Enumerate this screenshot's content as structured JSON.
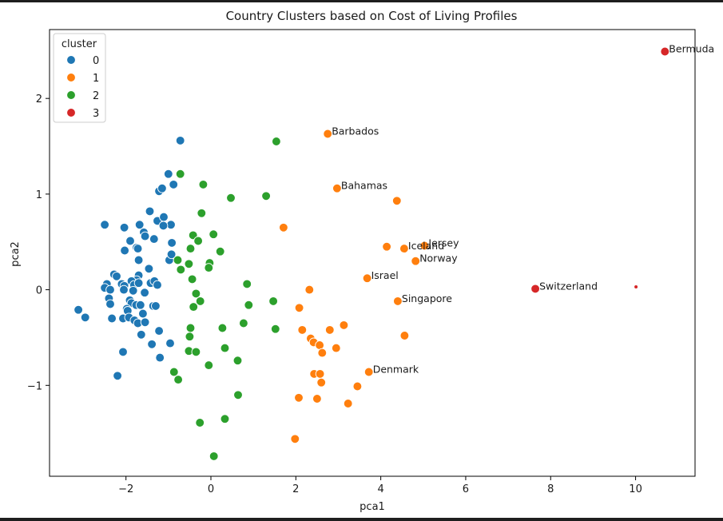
{
  "chart_data": {
    "type": "scatter",
    "title": "Country Clusters based on Cost of Living Profiles",
    "xlabel": "pca1",
    "ylabel": "pca2",
    "xlim": [
      -3.8,
      11.4
    ],
    "ylim": [
      -1.95,
      2.72
    ],
    "xticks": [
      {
        "v": -2,
        "label": "−2"
      },
      {
        "v": 0,
        "label": "0"
      },
      {
        "v": 2,
        "label": "2"
      },
      {
        "v": 4,
        "label": "4"
      },
      {
        "v": 6,
        "label": "6"
      },
      {
        "v": 8,
        "label": "8"
      },
      {
        "v": 10,
        "label": "10"
      }
    ],
    "yticks": [
      {
        "v": -1,
        "label": "−1"
      },
      {
        "v": 0,
        "label": "0"
      },
      {
        "v": 1,
        "label": "1"
      },
      {
        "v": 2,
        "label": "2"
      }
    ],
    "grid": false,
    "legend": {
      "title": "cluster",
      "position": "top-left",
      "entries": [
        {
          "label": "0",
          "color": "#1f77b4"
        },
        {
          "label": "1",
          "color": "#ff7f0e"
        },
        {
          "label": "2",
          "color": "#2ca02c"
        },
        {
          "label": "3",
          "color": "#d62728"
        }
      ]
    },
    "series": [
      {
        "name": "0",
        "color": "#1f77b4",
        "points": [
          [
            -0.72,
            1.56
          ],
          [
            -1.0,
            1.21
          ],
          [
            -0.88,
            1.1
          ],
          [
            -1.22,
            1.03
          ],
          [
            -1.15,
            1.06
          ],
          [
            -2.5,
            0.68
          ],
          [
            -2.04,
            0.65
          ],
          [
            -1.44,
            0.82
          ],
          [
            -1.26,
            0.72
          ],
          [
            -1.11,
            0.76
          ],
          [
            -0.94,
            0.68
          ],
          [
            -1.68,
            0.68
          ],
          [
            -1.12,
            0.67
          ],
          [
            -1.58,
            0.6
          ],
          [
            -1.55,
            0.56
          ],
          [
            -1.34,
            0.53
          ],
          [
            -1.9,
            0.51
          ],
          [
            -0.92,
            0.49
          ],
          [
            -1.75,
            0.44
          ],
          [
            -1.72,
            0.43
          ],
          [
            -2.03,
            0.41
          ],
          [
            -0.98,
            0.31
          ],
          [
            -0.93,
            0.37
          ],
          [
            -1.7,
            0.31
          ],
          [
            -1.46,
            0.22
          ],
          [
            -2.28,
            0.16
          ],
          [
            -2.22,
            0.14
          ],
          [
            -1.7,
            0.15
          ],
          [
            -1.75,
            0.1
          ],
          [
            -2.1,
            0.06
          ],
          [
            -1.87,
            0.09
          ],
          [
            -1.81,
            0.05
          ],
          [
            -1.42,
            0.07
          ],
          [
            -1.33,
            0.09
          ],
          [
            -1.26,
            0.05
          ],
          [
            -2.45,
            0.06
          ],
          [
            -2.5,
            0.02
          ],
          [
            -2.37,
            0.0
          ],
          [
            -2.04,
            0.04
          ],
          [
            -1.7,
            0.07
          ],
          [
            -2.05,
            0.0
          ],
          [
            -1.83,
            -0.01
          ],
          [
            -1.56,
            -0.03
          ],
          [
            -2.4,
            -0.09
          ],
          [
            -2.37,
            -0.15
          ],
          [
            -1.91,
            -0.11
          ],
          [
            -1.87,
            -0.14
          ],
          [
            -1.76,
            -0.16
          ],
          [
            -1.66,
            -0.16
          ],
          [
            -1.36,
            -0.17
          ],
          [
            -1.3,
            -0.17
          ],
          [
            -1.98,
            -0.2
          ],
          [
            -1.96,
            -0.22
          ],
          [
            -1.6,
            -0.25
          ],
          [
            -3.12,
            -0.21
          ],
          [
            -2.96,
            -0.29
          ],
          [
            -2.33,
            -0.3
          ],
          [
            -2.07,
            -0.3
          ],
          [
            -1.93,
            -0.29
          ],
          [
            -1.8,
            -0.32
          ],
          [
            -1.72,
            -0.35
          ],
          [
            -1.55,
            -0.34
          ],
          [
            -1.64,
            -0.47
          ],
          [
            -1.22,
            -0.43
          ],
          [
            -1.39,
            -0.57
          ],
          [
            -0.96,
            -0.56
          ],
          [
            -2.07,
            -0.65
          ],
          [
            -1.2,
            -0.71
          ],
          [
            -2.2,
            -0.9
          ]
        ]
      },
      {
        "name": "1",
        "color": "#ff7f0e",
        "points": [
          [
            2.75,
            1.63
          ],
          [
            2.97,
            1.06
          ],
          [
            4.38,
            0.93
          ],
          [
            1.71,
            0.65
          ],
          [
            4.14,
            0.45
          ],
          [
            4.55,
            0.43
          ],
          [
            5.03,
            0.46
          ],
          [
            4.82,
            0.3
          ],
          [
            3.68,
            0.12
          ],
          [
            2.32,
            0.0
          ],
          [
            4.4,
            -0.12
          ],
          [
            2.08,
            -0.19
          ],
          [
            3.13,
            -0.37
          ],
          [
            2.15,
            -0.42
          ],
          [
            2.8,
            -0.42
          ],
          [
            4.56,
            -0.48
          ],
          [
            2.35,
            -0.51
          ],
          [
            2.42,
            -0.55
          ],
          [
            2.56,
            -0.58
          ],
          [
            2.95,
            -0.61
          ],
          [
            2.62,
            -0.66
          ],
          [
            3.72,
            -0.86
          ],
          [
            2.43,
            -0.88
          ],
          [
            2.57,
            -0.88
          ],
          [
            2.6,
            -0.97
          ],
          [
            3.45,
            -1.01
          ],
          [
            2.07,
            -1.13
          ],
          [
            2.5,
            -1.14
          ],
          [
            3.23,
            -1.19
          ],
          [
            1.98,
            -1.56
          ]
        ]
      },
      {
        "name": "2",
        "color": "#2ca02c",
        "points": [
          [
            1.54,
            1.55
          ],
          [
            -0.72,
            1.21
          ],
          [
            -0.18,
            1.1
          ],
          [
            0.47,
            0.96
          ],
          [
            1.3,
            0.98
          ],
          [
            -0.22,
            0.8
          ],
          [
            -0.42,
            0.57
          ],
          [
            0.06,
            0.58
          ],
          [
            -0.3,
            0.51
          ],
          [
            -0.48,
            0.43
          ],
          [
            0.22,
            0.4
          ],
          [
            -0.78,
            0.31
          ],
          [
            -0.52,
            0.27
          ],
          [
            -0.03,
            0.28
          ],
          [
            -0.71,
            0.21
          ],
          [
            -0.05,
            0.23
          ],
          [
            -0.44,
            0.11
          ],
          [
            0.85,
            0.06
          ],
          [
            -0.35,
            -0.04
          ],
          [
            -0.25,
            -0.12
          ],
          [
            1.47,
            -0.12
          ],
          [
            0.89,
            -0.16
          ],
          [
            -0.41,
            -0.18
          ],
          [
            -0.48,
            -0.4
          ],
          [
            0.27,
            -0.4
          ],
          [
            1.52,
            -0.41
          ],
          [
            0.77,
            -0.35
          ],
          [
            -0.5,
            -0.49
          ],
          [
            -0.52,
            -0.64
          ],
          [
            -0.35,
            -0.65
          ],
          [
            0.33,
            -0.61
          ],
          [
            0.63,
            -0.74
          ],
          [
            -0.05,
            -0.79
          ],
          [
            -0.87,
            -0.86
          ],
          [
            -0.77,
            -0.94
          ],
          [
            0.64,
            -1.1
          ],
          [
            0.33,
            -1.35
          ],
          [
            -0.26,
            -1.39
          ],
          [
            0.07,
            -1.74
          ]
        ]
      },
      {
        "name": "3",
        "color": "#d62728",
        "points": [
          [
            10.69,
            2.49
          ],
          [
            7.64,
            0.01
          ],
          [
            10.01,
            0.03
          ]
        ]
      }
    ],
    "annotations": [
      {
        "text": "Bermuda",
        "x": 10.69,
        "y": 2.49
      },
      {
        "text": "Barbados",
        "x": 2.75,
        "y": 1.63
      },
      {
        "text": "Bahamas",
        "x": 2.97,
        "y": 1.06
      },
      {
        "text": "Jersey",
        "x": 5.03,
        "y": 0.46
      },
      {
        "text": "Iceland",
        "x": 4.55,
        "y": 0.43
      },
      {
        "text": "Norway",
        "x": 4.82,
        "y": 0.3
      },
      {
        "text": "Israel",
        "x": 3.68,
        "y": 0.12
      },
      {
        "text": "Switzerland",
        "x": 7.64,
        "y": 0.01
      },
      {
        "text": "Singapore",
        "x": 4.4,
        "y": -0.12
      },
      {
        "text": "Denmark",
        "x": 3.72,
        "y": -0.86
      }
    ]
  }
}
